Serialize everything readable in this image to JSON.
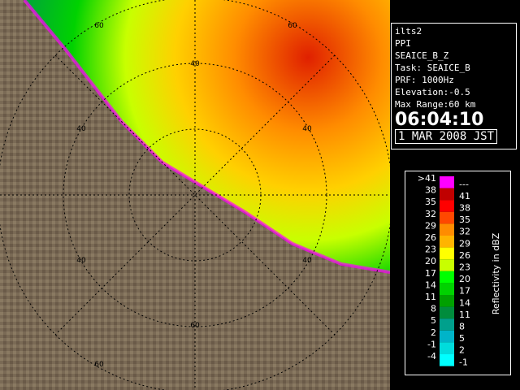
{
  "info": {
    "lines": [
      "ilts2",
      "PPI",
      "SEAICE_B_Z",
      "Task: SEAICE_B",
      "PRF: 1000Hz",
      "Elevation:-0.5",
      "Max Range:60 km"
    ],
    "time": "06:04:10",
    "date": "1 MAR 2008 JST"
  },
  "range_labels": [
    "60",
    "60",
    "40",
    "40",
    "40",
    "40",
    "40",
    "60",
    "60"
  ],
  "legend": {
    "title": "Reflectivity in dBZ",
    "rows": [
      {
        "low": ">41",
        "high": "---",
        "color": "#ff00ff"
      },
      {
        "low": "38",
        "high": "41",
        "color": "#c00000"
      },
      {
        "low": "35",
        "high": "38",
        "color": "#ff0000"
      },
      {
        "low": "32",
        "high": "35",
        "color": "#ff4800"
      },
      {
        "low": "29",
        "high": "32",
        "color": "#ff8c00"
      },
      {
        "low": "26",
        "high": "29",
        "color": "#ffb400"
      },
      {
        "low": "23",
        "high": "26",
        "color": "#ffff00"
      },
      {
        "low": "20",
        "high": "23",
        "color": "#c8ff00"
      },
      {
        "low": "17",
        "high": "20",
        "color": "#00ff00"
      },
      {
        "low": "14",
        "high": "17",
        "color": "#00d200"
      },
      {
        "low": "11",
        "high": "14",
        "color": "#00a000"
      },
      {
        "low": "8",
        "high": "11",
        "color": "#008c3c"
      },
      {
        "low": "5",
        "high": "8",
        "color": "#00a08c"
      },
      {
        "low": "2",
        "high": "5",
        "color": "#00b4c8"
      },
      {
        "low": "-1",
        "high": "2",
        "color": "#00dcdc"
      },
      {
        "low": "-4",
        "high": "-1",
        "color": "#00ffff"
      }
    ]
  }
}
